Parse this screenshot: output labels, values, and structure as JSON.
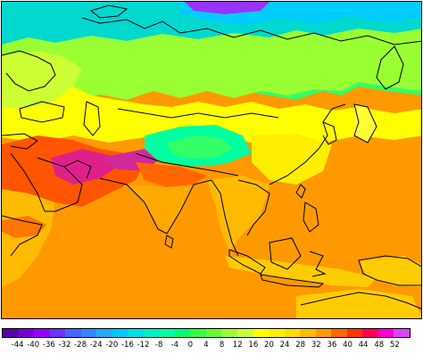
{
  "map": {
    "colors": {
      "ocean": "#ff9900",
      "land_warm": "#ffcc00",
      "hot_desert": "#ff5500",
      "hottest": "#e0208a",
      "mild": "#ffff00",
      "green": "#99ff33",
      "cool": "#33ff66",
      "cold": "#00e5c0",
      "arctic": "#00ccff",
      "coastline": "#000000"
    }
  },
  "colorbar": {
    "tick_labels": [
      "-44",
      "-40",
      "-36",
      "-32",
      "-28",
      "-24",
      "-20",
      "-16",
      "-12",
      "-8",
      "-4",
      "0",
      "4",
      "8",
      "12",
      "16",
      "20",
      "24",
      "28",
      "32",
      "36",
      "40",
      "44",
      "48",
      "52"
    ],
    "colors": [
      "#5b00a8",
      "#7a00d6",
      "#9900ff",
      "#6a33ff",
      "#4466ff",
      "#3388ff",
      "#22aaff",
      "#00c8ff",
      "#00e0e8",
      "#00f0c8",
      "#00ffa0",
      "#00ff70",
      "#33ff44",
      "#66ff33",
      "#99ff33",
      "#ccff33",
      "#ffff00",
      "#ffee00",
      "#ffdd00",
      "#ffbb00",
      "#ff9900",
      "#ff6600",
      "#ff3300",
      "#ff0055",
      "#ff00cc",
      "#dd44ff"
    ]
  }
}
